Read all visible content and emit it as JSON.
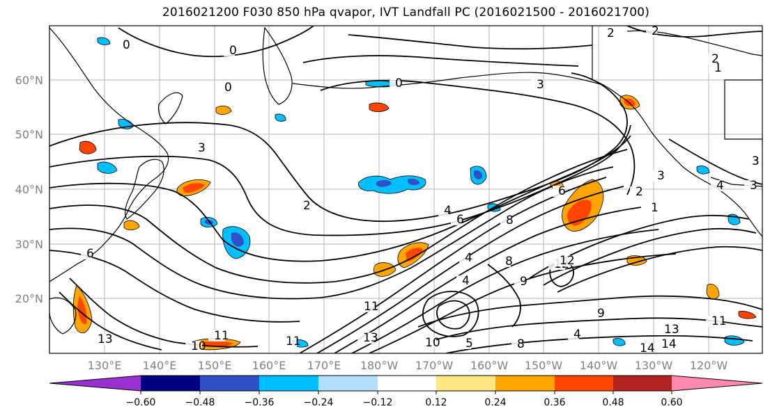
{
  "title": "2016021200 F030 850 hPa qvapor, IVT Landfall PC (2016021500 - 2016021700)",
  "lat_labels": [
    "60°N",
    "50°N",
    "40°N",
    "30°N",
    "20°N"
  ],
  "lon_labels": [
    "130°E",
    "140°E",
    "150°E",
    "160°E",
    "170°E",
    "180°W",
    "170°W",
    "160°W",
    "150°W",
    "140°W",
    "130°W",
    "120°W"
  ],
  "colorbar": {
    "colors": [
      "#9b30d0",
      "#000080",
      "#3050c8",
      "#00bfff",
      "#b3e0ff",
      "#ffffff",
      "#ffe680",
      "#ffa500",
      "#ff4500",
      "#b22222",
      "#ff88b0"
    ],
    "tick_labels": [
      "−0.60",
      "−0.48",
      "−0.36",
      "−0.24",
      "−0.12",
      "0.12",
      "0.24",
      "0.36",
      "0.48",
      "0.60"
    ]
  },
  "contour_labels": [
    "0",
    "0",
    "0",
    "0",
    "2",
    "2",
    "2",
    "3",
    "3",
    "3",
    "3",
    "2",
    "6",
    "4",
    "1",
    "1",
    "2",
    "6",
    "4",
    "4",
    "8",
    "8",
    "9",
    "11",
    "11",
    "13",
    "11",
    "10",
    "13",
    "12",
    "14",
    "5",
    "8",
    "9",
    "12",
    "14",
    "13",
    "11",
    "4",
    "3",
    "4",
    "3",
    "6",
    "10"
  ]
}
